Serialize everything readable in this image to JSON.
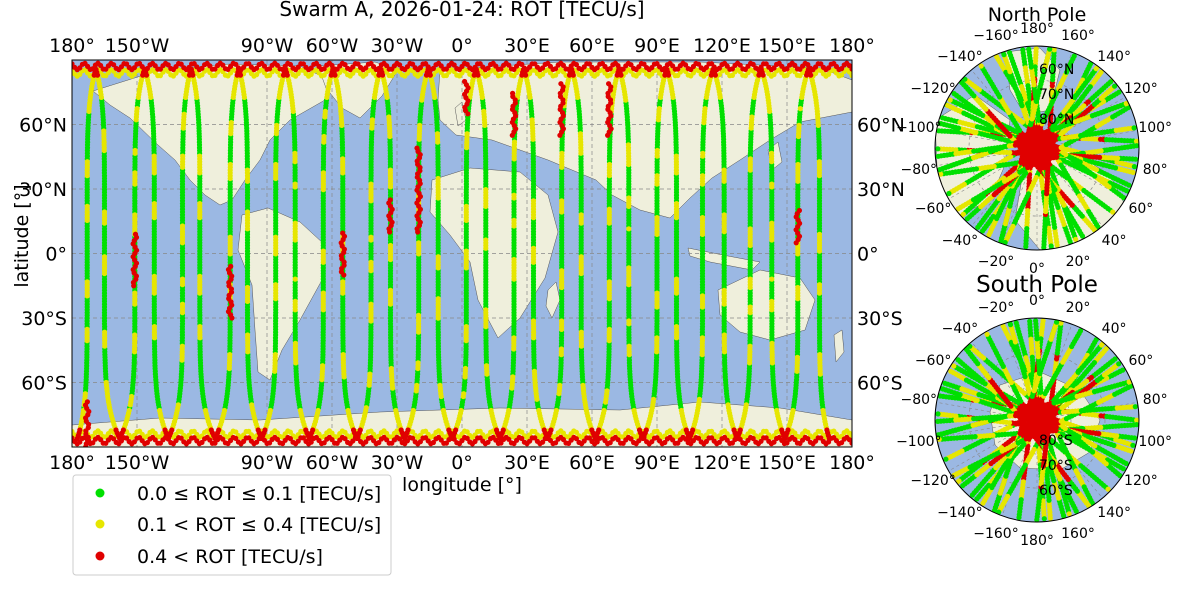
{
  "title": "Swarm A, 2026-01-24: ROT [TECU/s]",
  "main_map": {
    "xlabel": "longitude [°]",
    "ylabel": "latitude [°]",
    "lon_ticks": [
      {
        "lon": -180,
        "label": "180°"
      },
      {
        "lon": -150,
        "label": "150°W"
      },
      {
        "lon": -90,
        "label": "90°W"
      },
      {
        "lon": -60,
        "label": "60°W"
      },
      {
        "lon": -30,
        "label": "30°W"
      },
      {
        "lon": 0,
        "label": "0°"
      },
      {
        "lon": 30,
        "label": "30°E"
      },
      {
        "lon": 60,
        "label": "60°E"
      },
      {
        "lon": 90,
        "label": "90°E"
      },
      {
        "lon": 120,
        "label": "120°E"
      },
      {
        "lon": 150,
        "label": "150°E"
      },
      {
        "lon": 180,
        "label": "180°"
      }
    ],
    "lat_ticks": [
      {
        "lat": 60,
        "label": "60°N"
      },
      {
        "lat": 30,
        "label": "30°N"
      },
      {
        "lat": 0,
        "label": "0°"
      },
      {
        "lat": -30,
        "label": "-30°S"
      },
      {
        "lat": -60,
        "label": "60°S"
      }
    ],
    "lon_range": [
      -180,
      180
    ],
    "lat_range": [
      -90,
      90
    ],
    "ocean_color": "#9bb8e3",
    "land_color": "#efefdc",
    "grid": true
  },
  "north_pole": {
    "title": "North Pole",
    "angle_labels": [
      "180°",
      "160°",
      "140°",
      "120°",
      "100°",
      "80°",
      "60°",
      "40°",
      "20°",
      "0°",
      "-20°",
      "-40°",
      "-60°",
      "-80°",
      "-100°",
      "-120°",
      "-140°",
      "-160°"
    ],
    "ring_labels": [
      "60°N",
      "70°N",
      "80°N"
    ]
  },
  "south_pole": {
    "title": "South Pole",
    "angle_labels": [
      "0°",
      "20°",
      "40°",
      "60°",
      "80°",
      "100°",
      "120°",
      "140°",
      "160°",
      "180°",
      "-160°",
      "-140°",
      "-120°",
      "-100°",
      "-80°",
      "-60°",
      "-40°",
      "-20°"
    ],
    "ring_labels": [
      "80°S",
      "70°S",
      "60°S"
    ]
  },
  "legend": {
    "placement": "bottom-left",
    "items": [
      {
        "label": "0.0 ≤ ROT ≤ 0.1 [TECU/s]",
        "color": "#00e000"
      },
      {
        "label": "0.1 < ROT ≤ 0.4 [TECU/s]",
        "color": "#e6e600"
      },
      {
        "label": "0.4 < ROT [TECU/s]",
        "color": "#e00000"
      }
    ]
  },
  "chart_data": {
    "type": "scatter",
    "title": "Swarm A, 2026-01-24: ROT [TECU/s]",
    "xlabel": "longitude [°]",
    "ylabel": "latitude [°]",
    "xlim": [
      -180,
      180
    ],
    "ylim": [
      -90,
      90
    ],
    "series": [
      {
        "name": "0.0 ≤ ROT ≤ 0.1 [TECU/s]",
        "color": "#00e000"
      },
      {
        "name": "0.1 < ROT ≤ 0.4 [TECU/s]",
        "color": "#e6e600"
      },
      {
        "name": "0.4 < ROT [TECU/s]",
        "color": "#e00000"
      }
    ],
    "orbit_crossing_longitudes": [
      -173,
      -165,
      -151,
      -142,
      -129,
      -121,
      -107,
      -99,
      -86,
      -77,
      -64,
      -55,
      -42,
      -33,
      -20,
      -11,
      2,
      11,
      24,
      33,
      46,
      55,
      68,
      77,
      90,
      99,
      111,
      121,
      133,
      143,
      155,
      165
    ],
    "red_segments": [
      {
        "lon": -173,
        "lat_from": -90,
        "lat_to": -68
      },
      {
        "lon": -151,
        "lat_from": 10,
        "lat_to": -15
      },
      {
        "lon": -107,
        "lat_from": -5,
        "lat_to": -30
      },
      {
        "lon": -55,
        "lat_from": 10,
        "lat_to": -10
      },
      {
        "lon": -33,
        "lat_from": 25,
        "lat_to": 10
      },
      {
        "lon": -20,
        "lat_from": 50,
        "lat_to": 10
      },
      {
        "lon": 2,
        "lat_from": 80,
        "lat_to": 65
      },
      {
        "lon": 24,
        "lat_from": 75,
        "lat_to": 55
      },
      {
        "lon": 46,
        "lat_from": 80,
        "lat_to": 55
      },
      {
        "lon": 68,
        "lat_from": 80,
        "lat_to": 55
      },
      {
        "lon": 155,
        "lat_from": 20,
        "lat_to": 5
      }
    ]
  }
}
